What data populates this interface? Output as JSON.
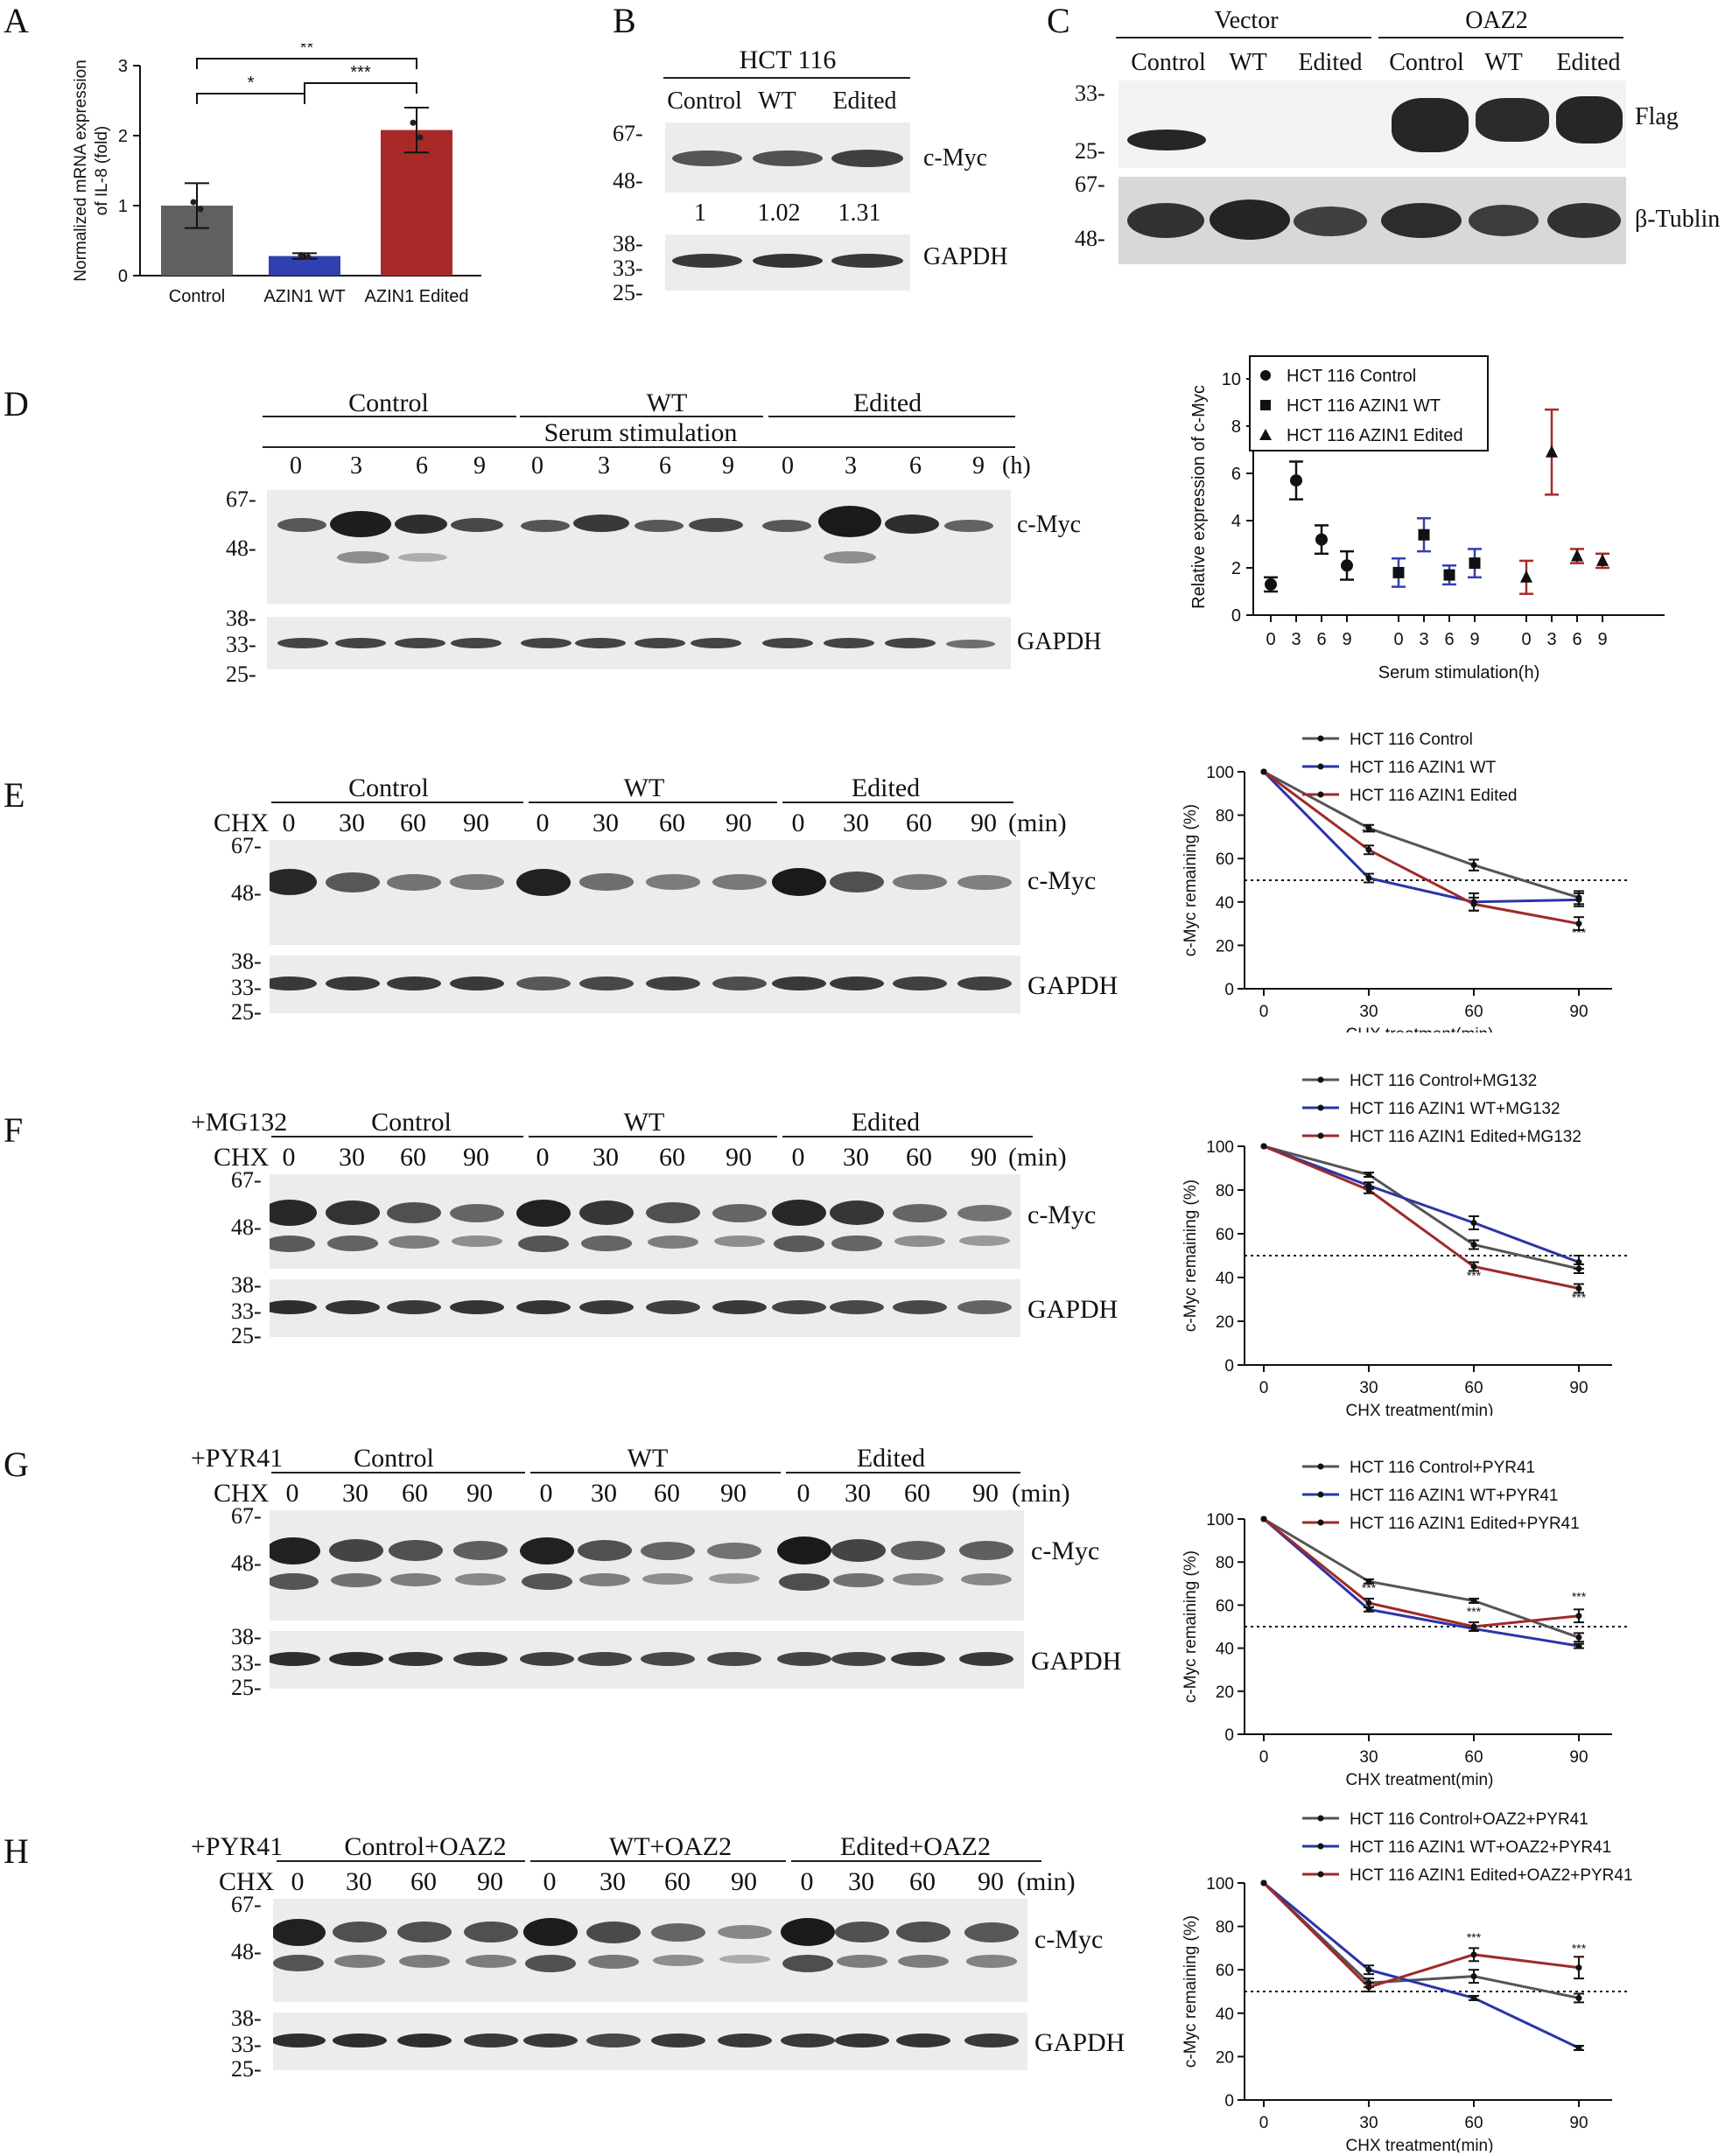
{
  "panels": {
    "A": {
      "letter": "A",
      "chart_data": {
        "type": "bar",
        "ylabel": "Normalized mRNA expression\nof IL-8 (fold)",
        "ylabel_lines": [
          "Normalized mRNA expression",
          "of IL-8 (fold)"
        ],
        "ylim": [
          0,
          3
        ],
        "yticks": [
          "0",
          "1",
          "2",
          "3"
        ],
        "categories": [
          "Control",
          "AZIN1 WT",
          "AZIN1 Edited"
        ],
        "values": [
          1.0,
          0.28,
          2.08
        ],
        "errors": [
          0.32,
          0.04,
          0.32
        ],
        "colors": [
          "#606060",
          "#3040b0",
          "#a82a28"
        ],
        "significance": [
          {
            "from": 0,
            "to": 1,
            "label": "*"
          },
          {
            "from": 1,
            "to": 2,
            "label": "***"
          },
          {
            "from": 0,
            "to": 2,
            "label": "**"
          }
        ]
      }
    },
    "B": {
      "letter": "B",
      "cell_line": "HCT 116",
      "lanes": [
        "Control",
        "WT",
        "Edited"
      ],
      "quant": [
        "1",
        "1.02",
        "1.31"
      ],
      "targets": [
        "c-Myc",
        "GAPDH"
      ],
      "markers_top": [
        "67-",
        "48-"
      ],
      "markers_bottom": [
        "38-",
        "33-",
        "25-"
      ]
    },
    "C": {
      "letter": "C",
      "groups": [
        "Vector",
        "OAZ2"
      ],
      "lanes": [
        "Control",
        "WT",
        "Edited",
        "Control",
        "WT",
        "Edited"
      ],
      "targets": [
        "Flag",
        "β-Tublin"
      ],
      "markers_top": [
        "33-",
        "25-"
      ],
      "markers_bottom": [
        "67-",
        "48-"
      ]
    },
    "D": {
      "letter": "D",
      "groups": [
        "Control",
        "WT",
        "Edited"
      ],
      "condition": "Serum stimulation",
      "timepoints": [
        "0",
        "3",
        "6",
        "9",
        "0",
        "3",
        "6",
        "9",
        "0",
        "3",
        "6",
        "9"
      ],
      "time_unit": "(h)",
      "targets": [
        "c-Myc",
        "GAPDH"
      ],
      "markers_top": [
        "67-",
        "48-"
      ],
      "markers_bottom": [
        "38-",
        "33-",
        "25-"
      ],
      "chart_data": {
        "type": "scatter",
        "ylabel": "Relative expression of c-Myc",
        "xlabel": "Serum stimulation(h)",
        "ylim": [
          0,
          10
        ],
        "yticks": [
          "0",
          "2",
          "4",
          "6",
          "8",
          "10"
        ],
        "xticks": [
          "0",
          "3",
          "6",
          "9",
          "0",
          "3",
          "6",
          "9",
          "0",
          "3",
          "6",
          "9"
        ],
        "series": [
          {
            "name": "HCT 116 Control",
            "marker": "circle",
            "color": "#111111",
            "values": [
              1.3,
              5.7,
              3.2,
              2.1
            ],
            "errors": [
              0.3,
              0.8,
              0.6,
              0.6
            ]
          },
          {
            "name": "HCT 116 AZIN1 WT",
            "marker": "square",
            "color": "#3040b0",
            "values": [
              1.8,
              3.4,
              1.7,
              2.2
            ],
            "errors": [
              0.6,
              0.7,
              0.4,
              0.6
            ]
          },
          {
            "name": "HCT 116 AZIN1 Edited",
            "marker": "triangle",
            "color": "#a82a28",
            "values": [
              1.6,
              6.9,
              2.5,
              2.3
            ],
            "errors": [
              0.7,
              1.8,
              0.3,
              0.3
            ]
          }
        ]
      }
    },
    "E": {
      "letter": "E",
      "treatment": "",
      "chx": "CHX",
      "groups": [
        "Control",
        "WT",
        "Edited"
      ],
      "timepoints": [
        "0",
        "30",
        "60",
        "90",
        "0",
        "30",
        "60",
        "90",
        "0",
        "30",
        "60",
        "90"
      ],
      "time_unit": "(min)",
      "targets": [
        "c-Myc",
        "GAPDH"
      ],
      "markers_top": [
        "67-",
        "48-"
      ],
      "markers_bottom": [
        "38-",
        "33-",
        "25-"
      ],
      "chart_data": {
        "type": "line",
        "ylabel": "c-Myc remaining (%)",
        "xlabel": "CHX treatment(min)",
        "x": [
          0,
          30,
          60,
          90
        ],
        "xticks": [
          "0",
          "30",
          "60",
          "90"
        ],
        "ylim": [
          0,
          100
        ],
        "yticks": [
          "0",
          "20",
          "40",
          "60",
          "80",
          "100"
        ],
        "hline": 50,
        "series": [
          {
            "name": "HCT 116 Control",
            "color": "#555555",
            "values": [
              100,
              74,
              57,
              42
            ],
            "errors": [
              0,
              1.5,
              2.5,
              3
            ]
          },
          {
            "name": "HCT 116 AZIN1 WT",
            "color": "#2a35a8",
            "values": [
              100,
              51,
              40,
              41
            ],
            "errors": [
              0,
              2,
              4,
              3
            ]
          },
          {
            "name": "HCT 116 AZIN1 Edited",
            "color": "#9e2a2a",
            "values": [
              100,
              64,
              39,
              30
            ],
            "errors": [
              0,
              2,
              3,
              3
            ]
          }
        ],
        "stars": [
          {
            "x": 30,
            "y": 70,
            "label": "***"
          },
          {
            "x": 90,
            "y": 24,
            "label": "***"
          }
        ]
      }
    },
    "F": {
      "letter": "F",
      "treatment": "+MG132",
      "chx": "CHX",
      "groups": [
        "Control",
        "WT",
        "Edited"
      ],
      "timepoints": [
        "0",
        "30",
        "60",
        "90",
        "0",
        "30",
        "60",
        "90",
        "0",
        "30",
        "60",
        "90"
      ],
      "time_unit": "(min)",
      "targets": [
        "c-Myc",
        "GAPDH"
      ],
      "markers_top": [
        "67-",
        "48-"
      ],
      "markers_bottom": [
        "38-",
        "33-",
        "25-"
      ],
      "chart_data": {
        "type": "line",
        "ylabel": "c-Myc remaining (%)",
        "xlabel": "CHX treatment(min)",
        "x": [
          0,
          30,
          60,
          90
        ],
        "xticks": [
          "0",
          "30",
          "60",
          "90"
        ],
        "ylim": [
          0,
          100
        ],
        "yticks": [
          "0",
          "20",
          "40",
          "60",
          "80",
          "100"
        ],
        "hline": 50,
        "series": [
          {
            "name": "HCT 116 Control+MG132",
            "color": "#555555",
            "values": [
              100,
              87,
              55,
              44
            ],
            "errors": [
              0,
              1,
              2,
              2
            ]
          },
          {
            "name": "HCT 116 AZIN1 WT+MG132",
            "color": "#2a35a8",
            "values": [
              100,
              82,
              65,
              47
            ],
            "errors": [
              0,
              1.5,
              3,
              3
            ]
          },
          {
            "name": "HCT 116 AZIN1 Edited+MG132",
            "color": "#9e2a2a",
            "values": [
              100,
              80,
              45,
              35
            ],
            "errors": [
              0,
              1.5,
              2,
              2
            ]
          }
        ],
        "stars": [
          {
            "x": 60,
            "y": 39,
            "label": "***"
          },
          {
            "x": 90,
            "y": 29,
            "label": "***"
          }
        ]
      }
    },
    "G": {
      "letter": "G",
      "treatment": "+PYR41",
      "chx": "CHX",
      "groups": [
        "Control",
        "WT",
        "Edited"
      ],
      "timepoints": [
        "0",
        "30",
        "60",
        "90",
        "0",
        "30",
        "60",
        "90",
        "0",
        "30",
        "60",
        "90"
      ],
      "time_unit": "(min)",
      "targets": [
        "c-Myc",
        "GAPDH"
      ],
      "markers_top": [
        "67-",
        "48-"
      ],
      "markers_bottom": [
        "38-",
        "33-",
        "25-"
      ],
      "chart_data": {
        "type": "line",
        "ylabel": "c-Myc remaining (%)",
        "xlabel": "CHX treatment(min)",
        "x": [
          0,
          30,
          60,
          90
        ],
        "xticks": [
          "0",
          "30",
          "60",
          "90"
        ],
        "ylim": [
          0,
          100
        ],
        "yticks": [
          "0",
          "20",
          "40",
          "60",
          "80",
          "100"
        ],
        "hline": 50,
        "series": [
          {
            "name": "HCT 116 Control+PYR41",
            "color": "#555555",
            "values": [
              100,
              71,
              62,
              45
            ],
            "errors": [
              0,
              1,
              1,
              2
            ]
          },
          {
            "name": "HCT 116 AZIN1 WT+PYR41",
            "color": "#2a35a8",
            "values": [
              100,
              58,
              49,
              41
            ],
            "errors": [
              0,
              1,
              1,
              1
            ]
          },
          {
            "name": "HCT 116 AZIN1 Edited+PYR41",
            "color": "#9e2a2a",
            "values": [
              100,
              61,
              50,
              55
            ],
            "errors": [
              0,
              2,
              2,
              3
            ]
          }
        ],
        "stars": [
          {
            "x": 30,
            "y": 66,
            "label": "***"
          },
          {
            "x": 60,
            "y": 55,
            "label": "***"
          },
          {
            "x": 90,
            "y": 62,
            "label": "***"
          }
        ]
      }
    },
    "H": {
      "letter": "H",
      "treatment": "+PYR41",
      "chx": "CHX",
      "groups": [
        "Control+OAZ2",
        "WT+OAZ2",
        "Edited+OAZ2"
      ],
      "timepoints": [
        "0",
        "30",
        "60",
        "90",
        "0",
        "30",
        "60",
        "90",
        "0",
        "30",
        "60",
        "90"
      ],
      "time_unit": "(min)",
      "targets": [
        "c-Myc",
        "GAPDH"
      ],
      "markers_top": [
        "67-",
        "48-"
      ],
      "markers_bottom": [
        "38-",
        "33-",
        "25-"
      ],
      "chart_data": {
        "type": "line",
        "ylabel": "c-Myc remaining (%)",
        "xlabel": "CHX treatment(min)",
        "x": [
          0,
          30,
          60,
          90
        ],
        "xticks": [
          "0",
          "30",
          "60",
          "90"
        ],
        "ylim": [
          0,
          100
        ],
        "yticks": [
          "0",
          "20",
          "40",
          "60",
          "80",
          "100"
        ],
        "hline": 50,
        "series": [
          {
            "name": "HCT 116 Control+OAZ2+PYR41",
            "color": "#555555",
            "values": [
              100,
              54,
              57,
              47
            ],
            "errors": [
              0,
              2,
              3,
              2
            ]
          },
          {
            "name": "HCT 116 AZIN1 WT+OAZ2+PYR41",
            "color": "#2a35a8",
            "values": [
              100,
              60,
              47,
              24
            ],
            "errors": [
              0,
              2,
              1,
              1
            ]
          },
          {
            "name": "HCT 116 AZIN1 Edited+OAZ2+PYR41",
            "color": "#9e2a2a",
            "values": [
              100,
              52,
              67,
              61
            ],
            "errors": [
              0,
              2,
              3,
              5
            ]
          }
        ],
        "stars": [
          {
            "x": 60,
            "y": 73,
            "label": "***"
          },
          {
            "x": 90,
            "y": 68,
            "label": "***"
          }
        ]
      }
    }
  }
}
